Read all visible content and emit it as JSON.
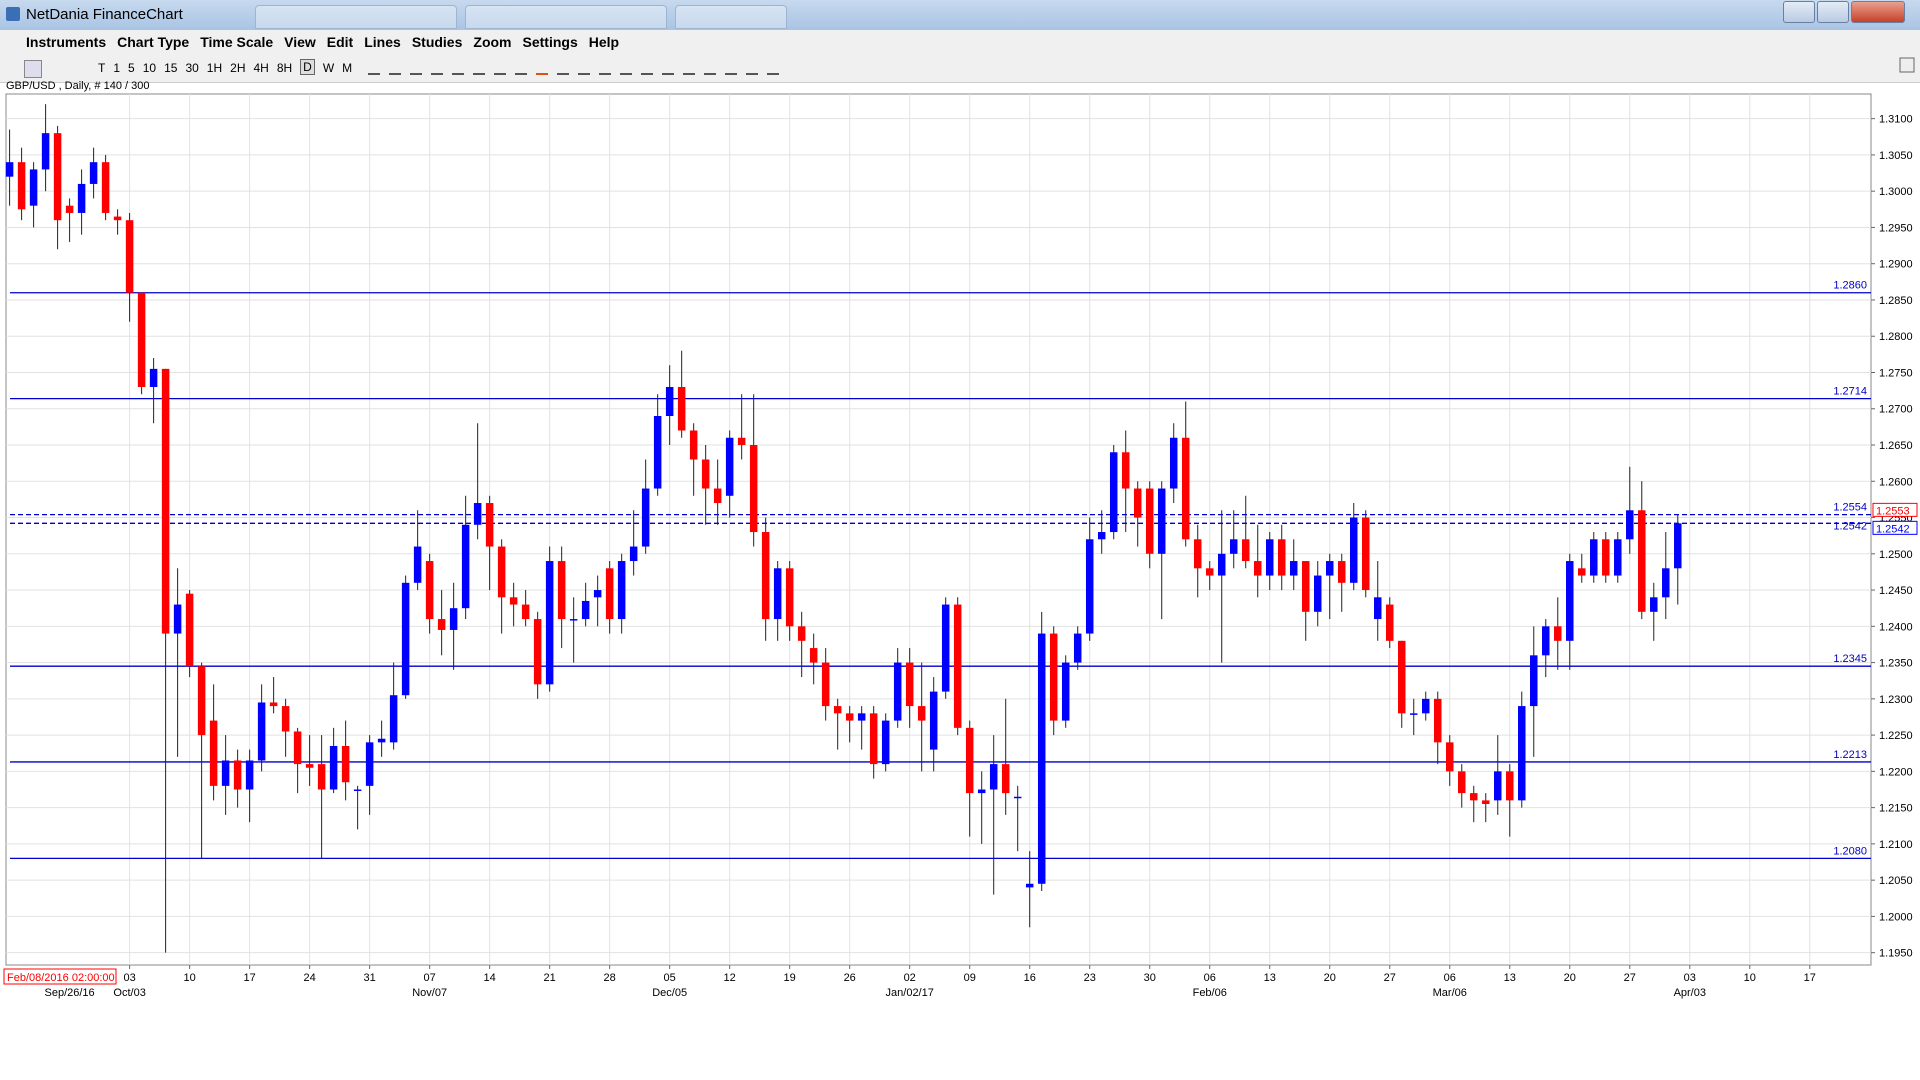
{
  "window": {
    "title": "NetDania FinanceChart"
  },
  "menu": [
    "Instruments",
    "Chart Type",
    "Time Scale",
    "View",
    "Edit",
    "Lines",
    "Studies",
    "Zoom",
    "Settings",
    "Help"
  ],
  "toolbar": {
    "timeframes": [
      "T",
      "1",
      "5",
      "10",
      "15",
      "30",
      "1H",
      "2H",
      "4H",
      "8H",
      "D",
      "W",
      "M"
    ],
    "active": "D"
  },
  "symbol_label": "GBP/USD , Daily, # 140 / 300",
  "cursor_time": "Feb/08/2016 02:00:00",
  "chart_data": {
    "type": "candlestick",
    "up_color": "#0000ff",
    "down_color": "#ff0000",
    "open": [
      1.302,
      1.304,
      1.298,
      1.303,
      1.308,
      1.298,
      1.297,
      1.301,
      1.304,
      1.2965,
      1.296,
      1.286,
      1.273,
      1.2755,
      1.239,
      1.2445,
      1.2345,
      1.227,
      1.218,
      1.2215,
      1.2175,
      1.2215,
      1.2295,
      1.229,
      1.2255,
      1.221,
      1.221,
      1.2175,
      1.2235,
      1.2175,
      1.218,
      1.224,
      1.224,
      1.2305,
      1.246,
      1.249,
      1.241,
      1.2395,
      1.2425,
      1.254,
      1.257,
      1.251,
      1.244,
      1.243,
      1.241,
      1.232,
      1.249,
      1.241,
      1.241,
      1.244,
      1.248,
      1.241,
      1.249,
      1.251,
      1.259,
      1.269,
      1.273,
      1.267,
      1.263,
      1.259,
      1.258,
      1.266,
      1.265,
      1.253,
      1.241,
      1.248,
      1.24,
      1.237,
      1.235,
      1.229,
      1.228,
      1.227,
      1.228,
      1.221,
      1.227,
      1.235,
      1.229,
      1.223,
      1.231,
      1.243,
      1.226,
      1.217,
      1.2175,
      1.221,
      1.2165,
      1.204,
      1.2045,
      1.239,
      1.227,
      1.235,
      1.239,
      1.252,
      1.253,
      1.264,
      1.259,
      1.259,
      1.25,
      1.259,
      1.266,
      1.252,
      1.248,
      1.247,
      1.25,
      1.252,
      1.249,
      1.247,
      1.252,
      1.247,
      1.249,
      1.242,
      1.247,
      1.249,
      1.246,
      1.255,
      1.241,
      1.243,
      1.238,
      1.228,
      1.228,
      1.23,
      1.224,
      1.22,
      1.217,
      1.216,
      1.216,
      1.22,
      1.216,
      1.229,
      1.236,
      1.24,
      1.238,
      1.248,
      1.247,
      1.252,
      1.247,
      1.252,
      1.256,
      1.242,
      1.244,
      1.248
    ],
    "high": [
      1.3085,
      1.306,
      1.304,
      1.312,
      1.309,
      1.299,
      1.303,
      1.306,
      1.305,
      1.2975,
      1.297,
      1.286,
      1.277,
      1.2755,
      1.248,
      1.245,
      1.235,
      1.232,
      1.225,
      1.223,
      1.223,
      1.232,
      1.233,
      1.23,
      1.226,
      1.225,
      1.225,
      1.226,
      1.227,
      1.218,
      1.225,
      1.227,
      1.235,
      1.247,
      1.256,
      1.25,
      1.245,
      1.246,
      1.258,
      1.268,
      1.258,
      1.252,
      1.246,
      1.245,
      1.242,
      1.251,
      1.251,
      1.244,
      1.246,
      1.247,
      1.249,
      1.25,
      1.256,
      1.263,
      1.272,
      1.276,
      1.278,
      1.268,
      1.265,
      1.263,
      1.267,
      1.272,
      1.272,
      1.255,
      1.249,
      1.249,
      1.242,
      1.239,
      1.237,
      1.23,
      1.229,
      1.229,
      1.229,
      1.228,
      1.237,
      1.237,
      1.235,
      1.233,
      1.244,
      1.244,
      1.227,
      1.22,
      1.225,
      1.23,
      1.218,
      1.209,
      1.242,
      1.24,
      1.236,
      1.24,
      1.255,
      1.256,
      1.265,
      1.267,
      1.26,
      1.26,
      1.26,
      1.268,
      1.271,
      1.254,
      1.249,
      1.256,
      1.256,
      1.258,
      1.254,
      1.253,
      1.254,
      1.252,
      1.249,
      1.249,
      1.25,
      1.25,
      1.257,
      1.256,
      1.249,
      1.244,
      1.238,
      1.23,
      1.231,
      1.231,
      1.225,
      1.221,
      1.218,
      1.217,
      1.225,
      1.221,
      1.231,
      1.24,
      1.241,
      1.244,
      1.25,
      1.25,
      1.253,
      1.253,
      1.253,
      1.262,
      1.26,
      1.246,
      1.253,
      1.2554
    ],
    "low": [
      1.298,
      1.296,
      1.295,
      1.3,
      1.292,
      1.293,
      1.294,
      1.299,
      1.296,
      1.294,
      1.282,
      1.272,
      1.268,
      1.195,
      1.222,
      1.233,
      1.208,
      1.216,
      1.214,
      1.215,
      1.213,
      1.22,
      1.228,
      1.222,
      1.217,
      1.218,
      1.208,
      1.217,
      1.216,
      1.212,
      1.214,
      1.222,
      1.223,
      1.23,
      1.245,
      1.239,
      1.236,
      1.234,
      1.241,
      1.252,
      1.245,
      1.239,
      1.24,
      1.24,
      1.23,
      1.231,
      1.237,
      1.235,
      1.24,
      1.24,
      1.239,
      1.239,
      1.247,
      1.25,
      1.258,
      1.265,
      1.266,
      1.258,
      1.254,
      1.254,
      1.255,
      1.263,
      1.251,
      1.238,
      1.238,
      1.238,
      1.233,
      1.232,
      1.227,
      1.223,
      1.224,
      1.223,
      1.219,
      1.22,
      1.226,
      1.226,
      1.22,
      1.22,
      1.23,
      1.225,
      1.211,
      1.21,
      1.203,
      1.214,
      1.209,
      1.1985,
      1.2035,
      1.225,
      1.226,
      1.234,
      1.238,
      1.25,
      1.252,
      1.253,
      1.251,
      1.248,
      1.241,
      1.257,
      1.251,
      1.244,
      1.245,
      1.235,
      1.248,
      1.248,
      1.244,
      1.245,
      1.245,
      1.245,
      1.238,
      1.24,
      1.241,
      1.242,
      1.245,
      1.244,
      1.238,
      1.237,
      1.226,
      1.225,
      1.227,
      1.221,
      1.218,
      1.215,
      1.213,
      1.213,
      1.214,
      1.211,
      1.215,
      1.222,
      1.233,
      1.234,
      1.234,
      1.246,
      1.246,
      1.246,
      1.246,
      1.25,
      1.241,
      1.238,
      1.241,
      1.243
    ],
    "close": [
      1.304,
      1.2975,
      1.303,
      1.308,
      1.296,
      1.297,
      1.301,
      1.304,
      1.297,
      1.296,
      1.286,
      1.273,
      1.2755,
      1.239,
      1.243,
      1.2345,
      1.225,
      1.218,
      1.2215,
      1.2175,
      1.2215,
      1.2295,
      1.229,
      1.2255,
      1.221,
      1.2205,
      1.2175,
      1.2235,
      1.2185,
      1.2175,
      1.224,
      1.2245,
      1.2305,
      1.246,
      1.251,
      1.241,
      1.2395,
      1.2425,
      1.254,
      1.257,
      1.251,
      1.244,
      1.243,
      1.241,
      1.232,
      1.249,
      1.241,
      1.241,
      1.2435,
      1.245,
      1.241,
      1.249,
      1.251,
      1.259,
      1.269,
      1.273,
      1.267,
      1.263,
      1.259,
      1.257,
      1.266,
      1.265,
      1.253,
      1.241,
      1.248,
      1.24,
      1.238,
      1.235,
      1.229,
      1.228,
      1.227,
      1.228,
      1.221,
      1.227,
      1.235,
      1.229,
      1.227,
      1.231,
      1.243,
      1.226,
      1.217,
      1.2175,
      1.221,
      1.217,
      1.2165,
      1.2045,
      1.239,
      1.227,
      1.235,
      1.239,
      1.252,
      1.253,
      1.264,
      1.259,
      1.255,
      1.25,
      1.259,
      1.266,
      1.252,
      1.248,
      1.247,
      1.25,
      1.252,
      1.249,
      1.247,
      1.252,
      1.247,
      1.249,
      1.242,
      1.247,
      1.249,
      1.246,
      1.255,
      1.245,
      1.244,
      1.238,
      1.228,
      1.228,
      1.23,
      1.224,
      1.22,
      1.217,
      1.216,
      1.2155,
      1.22,
      1.216,
      1.229,
      1.236,
      1.24,
      1.238,
      1.249,
      1.247,
      1.252,
      1.247,
      1.252,
      1.256,
      1.242,
      1.244,
      1.248,
      1.2542
    ],
    "xlim": [
      -0.3,
      155.1
    ],
    "ylim": [
      1.1933,
      1.3134
    ],
    "xticks": [
      {
        "value": 10,
        "label": "03"
      },
      {
        "value": 15,
        "label": "10"
      },
      {
        "value": 20,
        "label": "17"
      },
      {
        "value": 25,
        "label": "24"
      },
      {
        "value": 30,
        "label": "31"
      },
      {
        "value": 35,
        "label": "07"
      },
      {
        "value": 40,
        "label": "14"
      },
      {
        "value": 45,
        "label": "21"
      },
      {
        "value": 50,
        "label": "28"
      },
      {
        "value": 55,
        "label": "05"
      },
      {
        "value": 60,
        "label": "12"
      },
      {
        "value": 65,
        "label": "19"
      },
      {
        "value": 70,
        "label": "26"
      },
      {
        "value": 75,
        "label": "02"
      },
      {
        "value": 80,
        "label": "09"
      },
      {
        "value": 85,
        "label": "16"
      },
      {
        "value": 90,
        "label": "23"
      },
      {
        "value": 95,
        "label": "30"
      },
      {
        "value": 100,
        "label": "06"
      },
      {
        "value": 105,
        "label": "13"
      },
      {
        "value": 110,
        "label": "20"
      },
      {
        "value": 115,
        "label": "27"
      },
      {
        "value": 120,
        "label": "06"
      },
      {
        "value": 125,
        "label": "13"
      },
      {
        "value": 130,
        "label": "20"
      },
      {
        "value": 135,
        "label": "27"
      },
      {
        "value": 140,
        "label": "03"
      },
      {
        "value": 145,
        "label": "10"
      },
      {
        "value": 150,
        "label": "17"
      }
    ],
    "xticks2": [
      {
        "value": 5,
        "label": "Sep/26/16"
      },
      {
        "value": 10,
        "label": "Oct/03"
      },
      {
        "value": 35,
        "label": "Nov/07"
      },
      {
        "value": 55,
        "label": "Dec/05"
      },
      {
        "value": 75,
        "label": "Jan/02/17"
      },
      {
        "value": 100,
        "label": "Feb/06"
      },
      {
        "value": 120,
        "label": "Mar/06"
      },
      {
        "value": 140,
        "label": "Apr/03"
      }
    ],
    "yticks": [
      {
        "value": 1.195,
        "label": "1.1950"
      },
      {
        "value": 1.2,
        "label": "1.2000"
      },
      {
        "value": 1.205,
        "label": "1.2050"
      },
      {
        "value": 1.21,
        "label": "1.2100"
      },
      {
        "value": 1.215,
        "label": "1.2150"
      },
      {
        "value": 1.22,
        "label": "1.2200"
      },
      {
        "value": 1.225,
        "label": "1.2250"
      },
      {
        "value": 1.23,
        "label": "1.2300"
      },
      {
        "value": 1.235,
        "label": "1.2350"
      },
      {
        "value": 1.24,
        "label": "1.2400"
      },
      {
        "value": 1.245,
        "label": "1.2450"
      },
      {
        "value": 1.25,
        "label": "1.2500"
      },
      {
        "value": 1.255,
        "label": "1.2550"
      },
      {
        "value": 1.26,
        "label": "1.2600"
      },
      {
        "value": 1.265,
        "label": "1.2650"
      },
      {
        "value": 1.27,
        "label": "1.2700"
      },
      {
        "value": 1.275,
        "label": "1.2750"
      },
      {
        "value": 1.28,
        "label": "1.2800"
      },
      {
        "value": 1.285,
        "label": "1.2850"
      },
      {
        "value": 1.29,
        "label": "1.2900"
      },
      {
        "value": 1.295,
        "label": "1.2950"
      },
      {
        "value": 1.3,
        "label": "1.3000"
      },
      {
        "value": 1.305,
        "label": "1.3050"
      },
      {
        "value": 1.31,
        "label": "1.3100"
      }
    ],
    "grid": true,
    "levels": [
      {
        "value": 1.286,
        "label": "1.2860",
        "style": "solid"
      },
      {
        "value": 1.2714,
        "label": "1.2714",
        "style": "solid"
      },
      {
        "value": 1.2345,
        "label": "1.2345",
        "style": "solid"
      },
      {
        "value": 1.2213,
        "label": "1.2213",
        "style": "solid"
      },
      {
        "value": 1.208,
        "label": "1.2080",
        "style": "solid"
      },
      {
        "value": 1.2554,
        "label": "1.2554",
        "style": "dashed"
      },
      {
        "value": 1.2542,
        "label": "1.2542",
        "style": "dashed"
      }
    ],
    "level_color": "#0000cc",
    "price_markers": [
      {
        "value": 1.2553,
        "label": "1.2553",
        "color": "#ff0000"
      },
      {
        "value": 1.2542,
        "label": "1.2542",
        "color": "#0000ff"
      }
    ]
  }
}
